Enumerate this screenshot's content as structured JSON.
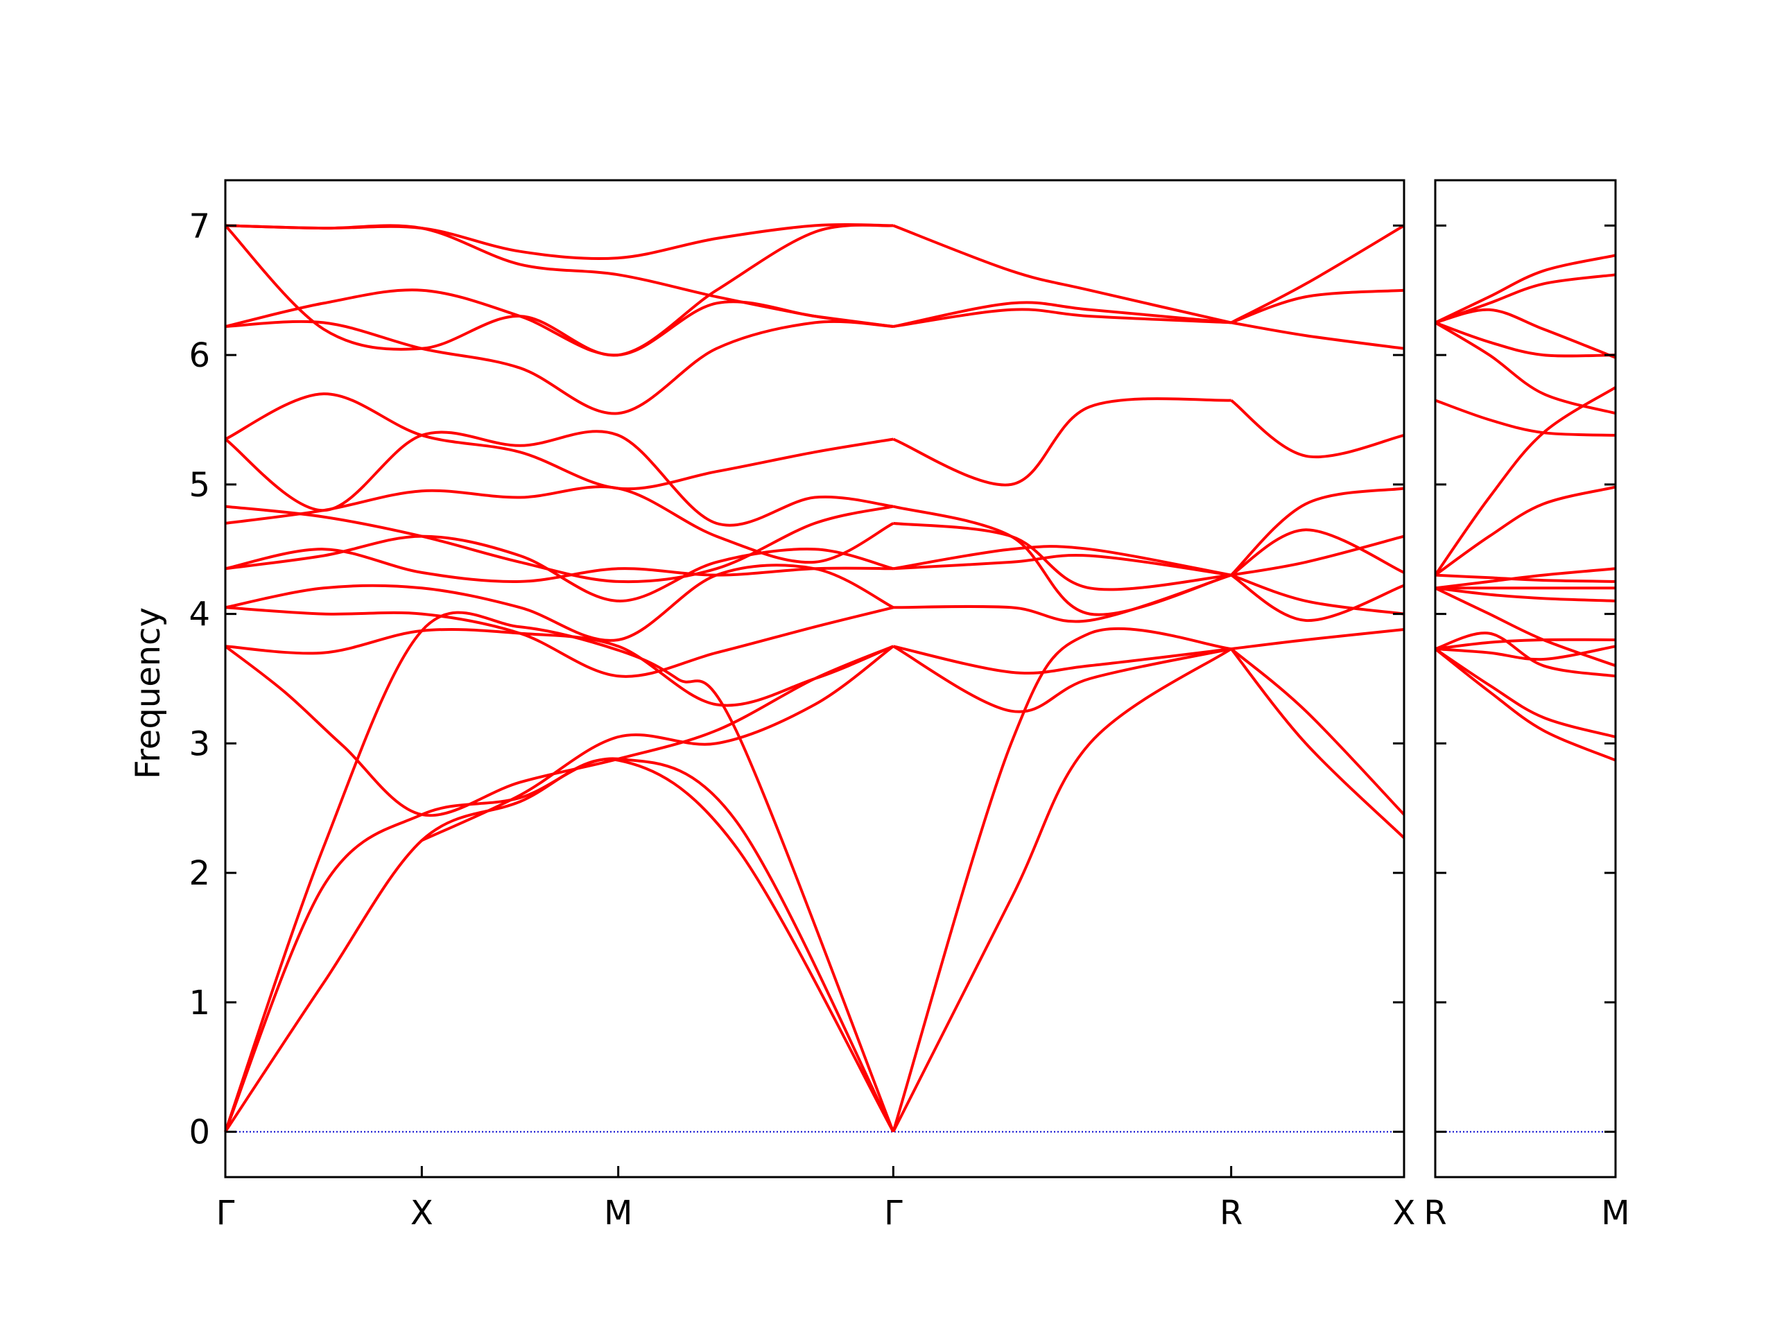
{
  "chart_data": {
    "type": "line",
    "title": "",
    "ylabel": "Frequency",
    "ylim": [
      -0.35,
      7.35
    ],
    "yticks": [
      0,
      1,
      2,
      3,
      4,
      5,
      6,
      7
    ],
    "grid": false,
    "colors": {
      "bands": "#ff0000",
      "zero_line": "#0000cc",
      "frame": "#000000"
    },
    "panels": [
      {
        "name": "main",
        "xrange": [
          0,
          6
        ],
        "ticks": [
          {
            "x": 0,
            "label": "Γ"
          },
          {
            "x": 1,
            "label": "X"
          },
          {
            "x": 2,
            "label": "M"
          },
          {
            "x": 3.4,
            "label": "Γ"
          },
          {
            "x": 5.12,
            "label": "R"
          },
          {
            "x": 6,
            "label": "X"
          }
        ],
        "bands": [
          {
            "x": [
              0,
              0.5,
              1,
              1.5,
              2,
              2.6,
              3.4
            ],
            "y": [
              0,
              1.15,
              2.25,
              2.55,
              2.87,
              2.2,
              0
            ]
          },
          {
            "x": [
              0,
              0.5,
              1,
              1.5,
              2,
              2.6,
              3.4
            ],
            "y": [
              0,
              1.9,
              2.45,
              2.58,
              2.88,
              2.4,
              0
            ]
          },
          {
            "x": [
              0,
              0.5,
              1,
              1.5,
              2,
              2.3,
              2.6,
              3.4
            ],
            "y": [
              0,
              2.2,
              3.87,
              3.9,
              3.72,
              3.5,
              3.1,
              0
            ]
          },
          {
            "x": [
              0,
              0.3,
              0.6,
              1,
              1.5,
              2,
              2.5,
              3,
              3.4
            ],
            "y": [
              3.75,
              3.4,
              2.98,
              2.45,
              2.7,
              2.88,
              3.1,
              3.5,
              3.75
            ]
          },
          {
            "x": [
              0,
              0.5,
              1,
              1.5,
              2,
              2.5,
              3,
              3.4
            ],
            "y": [
              3.75,
              3.7,
              3.87,
              3.85,
              3.75,
              3.3,
              3.5,
              3.75
            ]
          },
          {
            "x": [
              1,
              1.5,
              2,
              2.5,
              3,
              3.4
            ],
            "y": [
              2.25,
              2.6,
              3.05,
              3.0,
              3.3,
              3.75
            ]
          },
          {
            "x": [
              0,
              0.5,
              1,
              1.5,
              2,
              2.5,
              3,
              3.4
            ],
            "y": [
              4.05,
              4.0,
              4.0,
              3.85,
              3.52,
              3.7,
              3.9,
              4.05
            ]
          },
          {
            "x": [
              0,
              0.5,
              1,
              1.5,
              2,
              2.5,
              3,
              3.4
            ],
            "y": [
              4.05,
              4.2,
              4.2,
              4.05,
              3.8,
              4.3,
              4.35,
              4.05
            ]
          },
          {
            "x": [
              0,
              0.5,
              1,
              1.5,
              2,
              2.5,
              3,
              3.4
            ],
            "y": [
              4.35,
              4.5,
              4.32,
              4.25,
              4.35,
              4.3,
              4.35,
              4.35
            ]
          },
          {
            "x": [
              0,
              0.5,
              1,
              1.5,
              2,
              2.5,
              3,
              3.4
            ],
            "y": [
              4.35,
              4.45,
              4.6,
              4.45,
              4.1,
              4.4,
              4.5,
              4.35
            ]
          },
          {
            "x": [
              0,
              0.5,
              1,
              1.5,
              2,
              2.5,
              3,
              3.4
            ],
            "y": [
              4.7,
              4.8,
              4.95,
              4.9,
              4.97,
              4.6,
              4.4,
              4.7
            ]
          },
          {
            "x": [
              0,
              0.5,
              1,
              1.5,
              2,
              2.5,
              3,
              3.4
            ],
            "y": [
              4.83,
              4.75,
              4.6,
              4.4,
              4.25,
              4.35,
              4.7,
              4.83
            ]
          },
          {
            "x": [
              0,
              0.5,
              1,
              1.5,
              2,
              2.5,
              3,
              3.4
            ],
            "y": [
              5.35,
              4.8,
              5.38,
              5.3,
              5.38,
              4.7,
              4.9,
              4.83
            ]
          },
          {
            "x": [
              0,
              0.5,
              1,
              1.5,
              2,
              2.5,
              3,
              3.4
            ],
            "y": [
              5.35,
              5.7,
              5.38,
              5.25,
              4.97,
              5.1,
              5.25,
              5.35
            ]
          },
          {
            "x": [
              0,
              0.5,
              1,
              1.5,
              2,
              2.5,
              3,
              3.4
            ],
            "y": [
              6.22,
              6.25,
              6.05,
              5.9,
              5.55,
              6.05,
              6.25,
              6.22
            ]
          },
          {
            "x": [
              0,
              0.5,
              1,
              1.5,
              2,
              2.5,
              3,
              3.4
            ],
            "y": [
              6.22,
              6.4,
              6.5,
              6.3,
              6.0,
              6.4,
              6.3,
              6.22
            ]
          },
          {
            "x": [
              0,
              0.5,
              1,
              1.5,
              2,
              2.5,
              3,
              3.4
            ],
            "y": [
              7.0,
              6.2,
              6.05,
              6.3,
              6.0,
              6.5,
              6.95,
              7.0
            ]
          },
          {
            "x": [
              0,
              0.5,
              1,
              1.5,
              2,
              2.5,
              3,
              3.4
            ],
            "y": [
              7.0,
              6.98,
              6.98,
              6.7,
              6.62,
              6.45,
              6.3,
              6.22
            ]
          },
          {
            "x": [
              0,
              0.5,
              1,
              1.5,
              2,
              2.5,
              3,
              3.4
            ],
            "y": [
              7.0,
              6.98,
              6.98,
              6.8,
              6.75,
              6.9,
              7.0,
              7.0
            ]
          },
          {
            "x": [
              3.4,
              4.0,
              4.4,
              5.12
            ],
            "y": [
              0,
              1.8,
              3.0,
              3.73
            ]
          },
          {
            "x": [
              3.4,
              4.0,
              4.4,
              5.12
            ],
            "y": [
              0,
              3.0,
              3.85,
              3.73
            ]
          },
          {
            "x": [
              3.4,
              4.0,
              4.4,
              5.12
            ],
            "y": [
              3.75,
              3.25,
              3.5,
              3.73
            ]
          },
          {
            "x": [
              3.4,
              4.0,
              4.4,
              5.12
            ],
            "y": [
              3.75,
              3.55,
              3.6,
              3.73
            ]
          },
          {
            "x": [
              3.4,
              4.0,
              4.4,
              5.12
            ],
            "y": [
              4.05,
              4.05,
              3.95,
              4.3
            ]
          },
          {
            "x": [
              3.4,
              4.0,
              4.4,
              5.12
            ],
            "y": [
              4.35,
              4.5,
              4.5,
              4.3
            ]
          },
          {
            "x": [
              3.4,
              4.0,
              4.4,
              5.12
            ],
            "y": [
              4.35,
              4.4,
              4.45,
              4.3
            ]
          },
          {
            "x": [
              3.4,
              4.0,
              4.4,
              5.12
            ],
            "y": [
              4.7,
              4.6,
              4.2,
              4.3
            ]
          },
          {
            "x": [
              3.4,
              4.0,
              4.4,
              5.12
            ],
            "y": [
              4.83,
              4.6,
              4.0,
              4.3
            ]
          },
          {
            "x": [
              3.4,
              4.0,
              4.4,
              5.12
            ],
            "y": [
              5.35,
              5.0,
              5.6,
              5.65
            ]
          },
          {
            "x": [
              3.4,
              4.0,
              4.4,
              5.12
            ],
            "y": [
              6.22,
              6.4,
              6.35,
              6.25
            ]
          },
          {
            "x": [
              3.4,
              4.0,
              4.4,
              5.12
            ],
            "y": [
              6.22,
              6.35,
              6.3,
              6.25
            ]
          },
          {
            "x": [
              3.4,
              4.0,
              4.4,
              5.12
            ],
            "y": [
              7.0,
              6.65,
              6.5,
              6.25
            ]
          },
          {
            "x": [
              5.12,
              5.5,
              6
            ],
            "y": [
              3.73,
              3.0,
              2.27
            ]
          },
          {
            "x": [
              5.12,
              5.5,
              6
            ],
            "y": [
              3.73,
              3.25,
              2.45
            ]
          },
          {
            "x": [
              5.12,
              5.5,
              6
            ],
            "y": [
              3.73,
              3.8,
              3.88
            ]
          },
          {
            "x": [
              5.12,
              5.5,
              6
            ],
            "y": [
              4.3,
              4.1,
              4.0
            ]
          },
          {
            "x": [
              5.12,
              5.5,
              6
            ],
            "y": [
              4.3,
              3.95,
              4.22
            ]
          },
          {
            "x": [
              5.12,
              5.5,
              6
            ],
            "y": [
              4.3,
              4.4,
              4.6
            ]
          },
          {
            "x": [
              5.12,
              5.5,
              6
            ],
            "y": [
              4.3,
              4.65,
              4.32
            ]
          },
          {
            "x": [
              5.12,
              5.5,
              6
            ],
            "y": [
              4.3,
              4.85,
              4.97
            ]
          },
          {
            "x": [
              5.12,
              5.5,
              6
            ],
            "y": [
              5.65,
              5.22,
              5.38
            ]
          },
          {
            "x": [
              5.12,
              5.5,
              6
            ],
            "y": [
              6.25,
              6.15,
              6.05
            ]
          },
          {
            "x": [
              5.12,
              5.5,
              6
            ],
            "y": [
              6.25,
              6.45,
              6.5
            ]
          },
          {
            "x": [
              5.12,
              5.5,
              6
            ],
            "y": [
              6.25,
              6.55,
              7.0
            ]
          }
        ]
      },
      {
        "name": "right",
        "xrange": [
          0,
          1
        ],
        "ticks": [
          {
            "x": 0,
            "label": "R"
          },
          {
            "x": 1,
            "label": "M"
          }
        ],
        "bands": [
          {
            "x": [
              0,
              0.3,
              0.6,
              1
            ],
            "y": [
              3.73,
              3.4,
              3.1,
              2.87
            ]
          },
          {
            "x": [
              0,
              0.3,
              0.6,
              1
            ],
            "y": [
              3.73,
              3.45,
              3.2,
              3.05
            ]
          },
          {
            "x": [
              0,
              0.3,
              0.6,
              1
            ],
            "y": [
              3.73,
              3.85,
              3.6,
              3.52
            ]
          },
          {
            "x": [
              0,
              0.3,
              0.6,
              1
            ],
            "y": [
              3.73,
              3.7,
              3.65,
              3.75
            ]
          },
          {
            "x": [
              0,
              0.3,
              0.6,
              1
            ],
            "y": [
              3.73,
              3.78,
              3.8,
              3.8
            ]
          },
          {
            "x": [
              0,
              0.3,
              0.6,
              1
            ],
            "y": [
              4.2,
              4.0,
              3.8,
              3.6
            ]
          },
          {
            "x": [
              0,
              0.3,
              0.6,
              1
            ],
            "y": [
              4.2,
              4.15,
              4.12,
              4.1
            ]
          },
          {
            "x": [
              0,
              0.3,
              0.6,
              1
            ],
            "y": [
              4.2,
              4.2,
              4.2,
              4.2
            ]
          },
          {
            "x": [
              0,
              0.3,
              0.6,
              1
            ],
            "y": [
              4.3,
              4.28,
              4.26,
              4.25
            ]
          },
          {
            "x": [
              0,
              0.3,
              0.6,
              1
            ],
            "y": [
              4.2,
              4.25,
              4.3,
              4.35
            ]
          },
          {
            "x": [
              0,
              0.3,
              0.6,
              1
            ],
            "y": [
              4.3,
              4.6,
              4.85,
              4.98
            ]
          },
          {
            "x": [
              0,
              0.3,
              0.6,
              1
            ],
            "y": [
              4.3,
              4.9,
              5.4,
              5.75
            ]
          },
          {
            "x": [
              0,
              0.3,
              0.6,
              1
            ],
            "y": [
              5.65,
              5.5,
              5.4,
              5.38
            ]
          },
          {
            "x": [
              0,
              0.3,
              0.6,
              1
            ],
            "y": [
              6.25,
              6.0,
              5.7,
              5.55
            ]
          },
          {
            "x": [
              0,
              0.3,
              0.6,
              1
            ],
            "y": [
              6.25,
              6.1,
              6.0,
              6.0
            ]
          },
          {
            "x": [
              0,
              0.3,
              0.6,
              1
            ],
            "y": [
              6.25,
              6.35,
              6.2,
              5.98
            ]
          },
          {
            "x": [
              0,
              0.3,
              0.6,
              1
            ],
            "y": [
              6.25,
              6.4,
              6.55,
              6.62
            ]
          },
          {
            "x": [
              0,
              0.3,
              0.6,
              1
            ],
            "y": [
              6.25,
              6.45,
              6.65,
              6.77
            ]
          }
        ]
      }
    ]
  }
}
